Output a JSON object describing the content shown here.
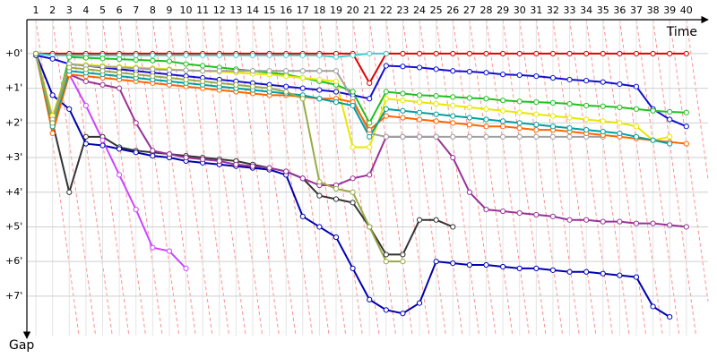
{
  "chart_data": {
    "type": "line",
    "x_label": "Time",
    "y_label": "Gap",
    "x": [
      1,
      2,
      3,
      4,
      5,
      6,
      7,
      8,
      9,
      10,
      11,
      12,
      13,
      14,
      15,
      16,
      17,
      18,
      19,
      20,
      21,
      22,
      23,
      24,
      25,
      26,
      27,
      28,
      29,
      30,
      31,
      32,
      33,
      34,
      35,
      36,
      37,
      38,
      39,
      40
    ],
    "xlim": [
      0.46,
      41.3
    ],
    "xticks": [
      1,
      2,
      3,
      4,
      5,
      6,
      7,
      8,
      9,
      10,
      11,
      12,
      13,
      14,
      15,
      16,
      17,
      18,
      19,
      20,
      21,
      22,
      23,
      24,
      25,
      26,
      27,
      28,
      29,
      30,
      31,
      32,
      33,
      34,
      35,
      36,
      37,
      38,
      39,
      40
    ],
    "ylim": [
      -0.98,
      8.14
    ],
    "y_inverted": true,
    "yticks": [
      {
        "value": 0,
        "label": "+0'"
      },
      {
        "value": 1,
        "label": "+1'"
      },
      {
        "value": 2,
        "label": "+2'"
      },
      {
        "value": 3,
        "label": "+3'"
      },
      {
        "value": 4,
        "label": "+4'"
      },
      {
        "value": 5,
        "label": "+5'"
      },
      {
        "value": 6,
        "label": "+6'"
      },
      {
        "value": 7,
        "label": "+7'"
      }
    ],
    "grid": true,
    "series": [
      {
        "color": "#e00000",
        "values": [
          0,
          0,
          0,
          0,
          0,
          0,
          0,
          0,
          0,
          0,
          0,
          0,
          0,
          0,
          0,
          0,
          0,
          0,
          0,
          0,
          0.85,
          0,
          0,
          0,
          0,
          0,
          0,
          0,
          0,
          0,
          0,
          0,
          0,
          0,
          0,
          0,
          0,
          0,
          0,
          0
        ]
      },
      {
        "color": "#44cccc",
        "values": [
          0,
          0.05,
          0.05,
          0.05,
          0.05,
          0.05,
          0.05,
          0.05,
          0.05,
          0.05,
          0.05,
          0.05,
          0.05,
          0.05,
          0.05,
          0.05,
          0.05,
          0.05,
          0.1,
          0.05,
          0,
          0,
          null,
          null,
          null,
          null,
          null,
          null,
          null,
          null,
          null,
          null,
          null,
          null,
          null,
          null,
          null,
          null,
          null,
          null
        ]
      },
      {
        "color": "#1010d0",
        "values": [
          0.05,
          0.15,
          0.3,
          0.35,
          0.4,
          0.45,
          0.5,
          0.55,
          0.6,
          0.65,
          0.7,
          0.75,
          0.8,
          0.85,
          0.9,
          0.95,
          1.0,
          1.05,
          1.1,
          1.2,
          1.3,
          0.35,
          0.37,
          0.4,
          0.45,
          0.5,
          0.52,
          0.55,
          0.6,
          0.62,
          0.65,
          0.7,
          0.75,
          0.78,
          0.82,
          0.88,
          0.95,
          1.6,
          1.9,
          2.1
        ]
      },
      {
        "color": "#20c020",
        "values": [
          0,
          2.0,
          0.1,
          0.12,
          0.14,
          0.16,
          0.18,
          0.2,
          0.22,
          0.3,
          0.35,
          0.4,
          0.45,
          0.5,
          0.55,
          0.6,
          0.7,
          0.8,
          0.9,
          1.1,
          2.0,
          1.1,
          1.15,
          1.2,
          1.22,
          1.25,
          1.28,
          1.3,
          1.35,
          1.38,
          1.4,
          1.42,
          1.45,
          1.5,
          1.52,
          1.55,
          1.6,
          1.65,
          1.68,
          1.7
        ]
      },
      {
        "color": "#333333",
        "values": [
          0,
          2.0,
          4.0,
          2.4,
          2.4,
          2.7,
          2.8,
          2.85,
          2.9,
          2.95,
          3.0,
          3.05,
          3.1,
          3.2,
          3.3,
          3.4,
          3.6,
          4.1,
          4.2,
          4.3,
          5.0,
          5.8,
          5.8,
          4.8,
          4.8,
          5.0,
          null,
          null,
          null,
          null,
          null,
          null,
          null,
          null,
          null,
          null,
          null,
          null,
          null,
          null
        ]
      },
      {
        "color": "#0000b0",
        "values": [
          0,
          1.2,
          1.6,
          2.6,
          2.65,
          2.75,
          2.85,
          2.95,
          3.0,
          3.1,
          3.15,
          3.2,
          3.25,
          3.3,
          3.35,
          3.5,
          4.7,
          5.0,
          5.3,
          6.2,
          7.1,
          7.4,
          7.5,
          7.2,
          6.0,
          6.05,
          6.1,
          6.1,
          6.15,
          6.2,
          6.2,
          6.25,
          6.3,
          6.3,
          6.35,
          6.4,
          6.45,
          7.3,
          7.6,
          null
        ]
      },
      {
        "color": "#cc44ff",
        "values": [
          0,
          2.1,
          0.6,
          1.5,
          2.5,
          3.5,
          4.5,
          5.6,
          5.7,
          6.2,
          null,
          null,
          null,
          null,
          null,
          null,
          null,
          null,
          null,
          null,
          null,
          null,
          null,
          null,
          null,
          null,
          null,
          null,
          null,
          null,
          null,
          null,
          null,
          null,
          null,
          null,
          null,
          null,
          null,
          null
        ]
      },
      {
        "color": "#993399",
        "values": [
          0,
          2.0,
          0.6,
          0.8,
          0.9,
          1.0,
          2.0,
          2.8,
          2.9,
          3.0,
          3.05,
          3.1,
          3.2,
          3.25,
          3.3,
          3.4,
          3.6,
          3.8,
          3.8,
          3.6,
          3.5,
          2.4,
          2.4,
          2.4,
          2.4,
          3.0,
          4.0,
          4.5,
          4.55,
          4.6,
          4.65,
          4.7,
          4.8,
          4.8,
          4.85,
          4.85,
          4.9,
          4.9,
          4.95,
          5.0
        ]
      },
      {
        "color": "#e8e800",
        "values": [
          0,
          1.8,
          0.3,
          0.32,
          0.35,
          0.38,
          0.4,
          0.42,
          0.45,
          0.48,
          0.5,
          0.52,
          0.55,
          0.58,
          0.6,
          0.65,
          0.7,
          0.75,
          0.8,
          2.7,
          2.7,
          1.3,
          1.35,
          1.4,
          1.45,
          1.5,
          1.55,
          1.6,
          1.65,
          1.7,
          1.75,
          1.8,
          1.85,
          1.9,
          1.95,
          2.0,
          2.1,
          2.5,
          2.4,
          null
        ]
      },
      {
        "color": "#a0a0a0",
        "values": [
          0,
          1.9,
          0.3,
          0.35,
          0.38,
          0.4,
          0.42,
          0.45,
          0.47,
          0.48,
          0.5,
          0.5,
          0.5,
          0.5,
          0.5,
          0.5,
          0.5,
          0.5,
          0.5,
          1.3,
          2.3,
          2.4,
          2.4,
          2.4,
          2.4,
          2.4,
          2.4,
          2.4,
          2.4,
          2.4,
          2.4,
          2.4,
          2.4,
          2.4,
          2.4,
          null,
          null,
          null,
          null,
          null
        ]
      },
      {
        "color": "#ff6600",
        "values": [
          0,
          2.3,
          0.6,
          0.65,
          0.7,
          0.75,
          0.8,
          0.85,
          0.9,
          0.95,
          1.0,
          1.05,
          1.1,
          1.15,
          1.2,
          1.2,
          1.25,
          1.3,
          1.3,
          1.4,
          2.2,
          1.8,
          1.85,
          1.9,
          1.95,
          2.0,
          2.05,
          2.1,
          2.1,
          2.15,
          2.2,
          2.2,
          2.25,
          2.3,
          2.35,
          2.4,
          2.45,
          2.5,
          2.55,
          2.6
        ]
      },
      {
        "color": "#00a0a0",
        "values": [
          0,
          2.1,
          0.5,
          0.55,
          0.6,
          0.65,
          0.7,
          0.75,
          0.8,
          0.85,
          0.9,
          0.95,
          1.0,
          1.05,
          1.1,
          1.15,
          1.2,
          1.3,
          1.4,
          1.5,
          2.4,
          1.6,
          1.65,
          1.7,
          1.75,
          1.8,
          1.85,
          1.9,
          1.95,
          2.0,
          2.05,
          2.1,
          2.15,
          2.2,
          2.25,
          2.3,
          2.4,
          2.5,
          2.6,
          null
        ]
      },
      {
        "color": "#99aa44",
        "values": [
          0,
          2.0,
          0.4,
          0.45,
          0.5,
          0.55,
          0.6,
          0.65,
          0.7,
          0.75,
          0.8,
          0.85,
          0.9,
          0.95,
          1.0,
          1.1,
          1.3,
          3.7,
          3.9,
          4.0,
          5.0,
          6.0,
          6.0,
          null,
          null,
          null,
          null,
          null,
          null,
          null,
          null,
          null,
          null,
          null,
          null,
          null,
          null,
          null,
          null,
          null
        ]
      }
    ]
  }
}
